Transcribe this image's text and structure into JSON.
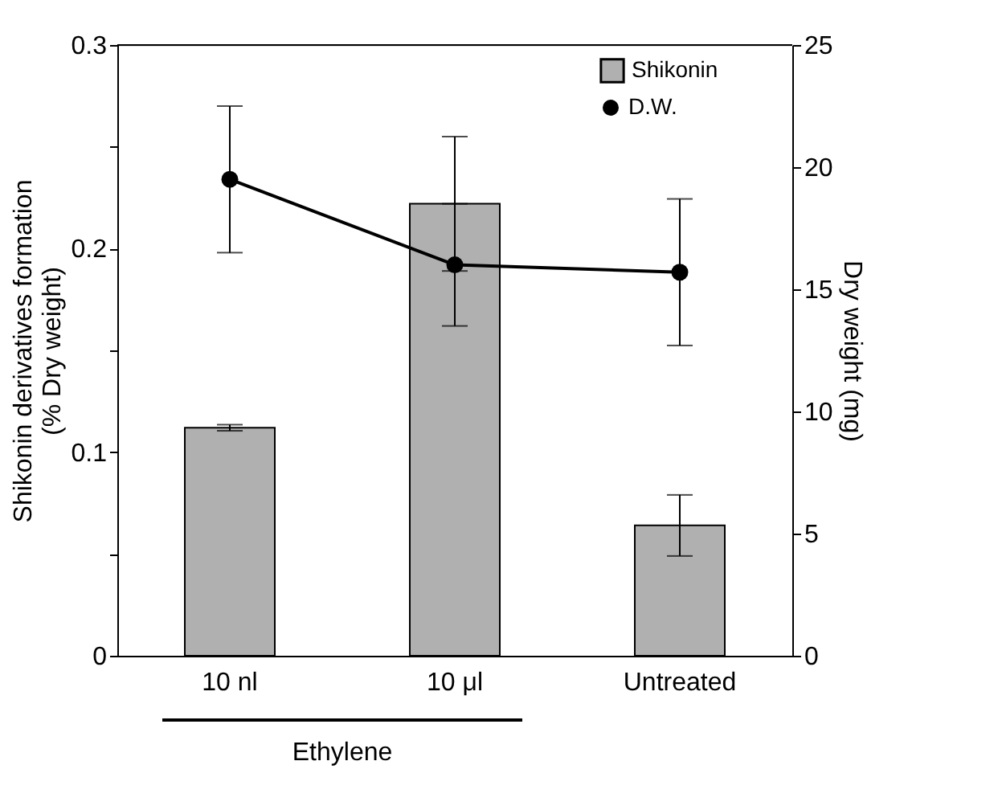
{
  "chart_data": {
    "type": "bar",
    "categories": [
      "10 nl",
      "10 μl",
      "Untreated"
    ],
    "ylabel": "Shikonin derivatives formation\n(% Dry weight)",
    "y2label": "Dry weight (mg)",
    "ylim": [
      0,
      0.3
    ],
    "yticks": [
      0,
      {
        "value": 0.05,
        "label": null
      },
      0.1,
      {
        "value": 0.15,
        "label": null
      },
      0.2,
      {
        "value": 0.25,
        "label": null
      },
      0.3
    ],
    "y2lim": [
      0,
      25
    ],
    "y2ticks": [
      0,
      5,
      10,
      15,
      20,
      25
    ],
    "series": [
      {
        "name": "Shikonin",
        "color": "#b0b0b0",
        "values": [
          0.112,
          0.222,
          0.064
        ],
        "errors": [
          0.0015,
          0.033,
          0.015
        ]
      },
      {
        "name": "D.W.",
        "type": "line",
        "axis": "y2",
        "color": "#000000",
        "marker": "circle",
        "values": [
          19.5,
          16.0,
          15.7
        ],
        "errors": [
          3.0,
          2.5,
          3.0
        ]
      }
    ],
    "annotations": [
      "Ethylene"
    ],
    "legend": "top right",
    "grid": false
  }
}
